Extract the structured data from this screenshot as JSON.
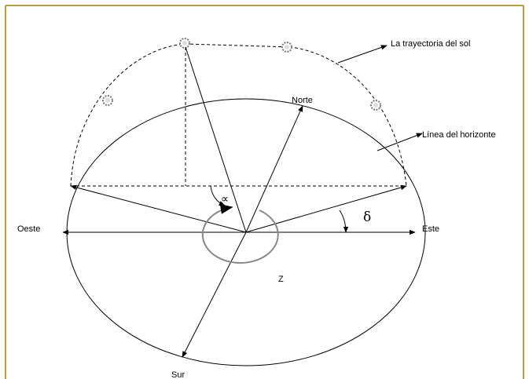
{
  "labels": {
    "trajectory": "La trayectoria del sol",
    "horizon": "Línea del horizonte",
    "north": "Norte",
    "south": "Sur",
    "west": "Oeste",
    "east": "Este",
    "zenith": "Z",
    "azimuth": "∝",
    "declination": "δ"
  }
}
